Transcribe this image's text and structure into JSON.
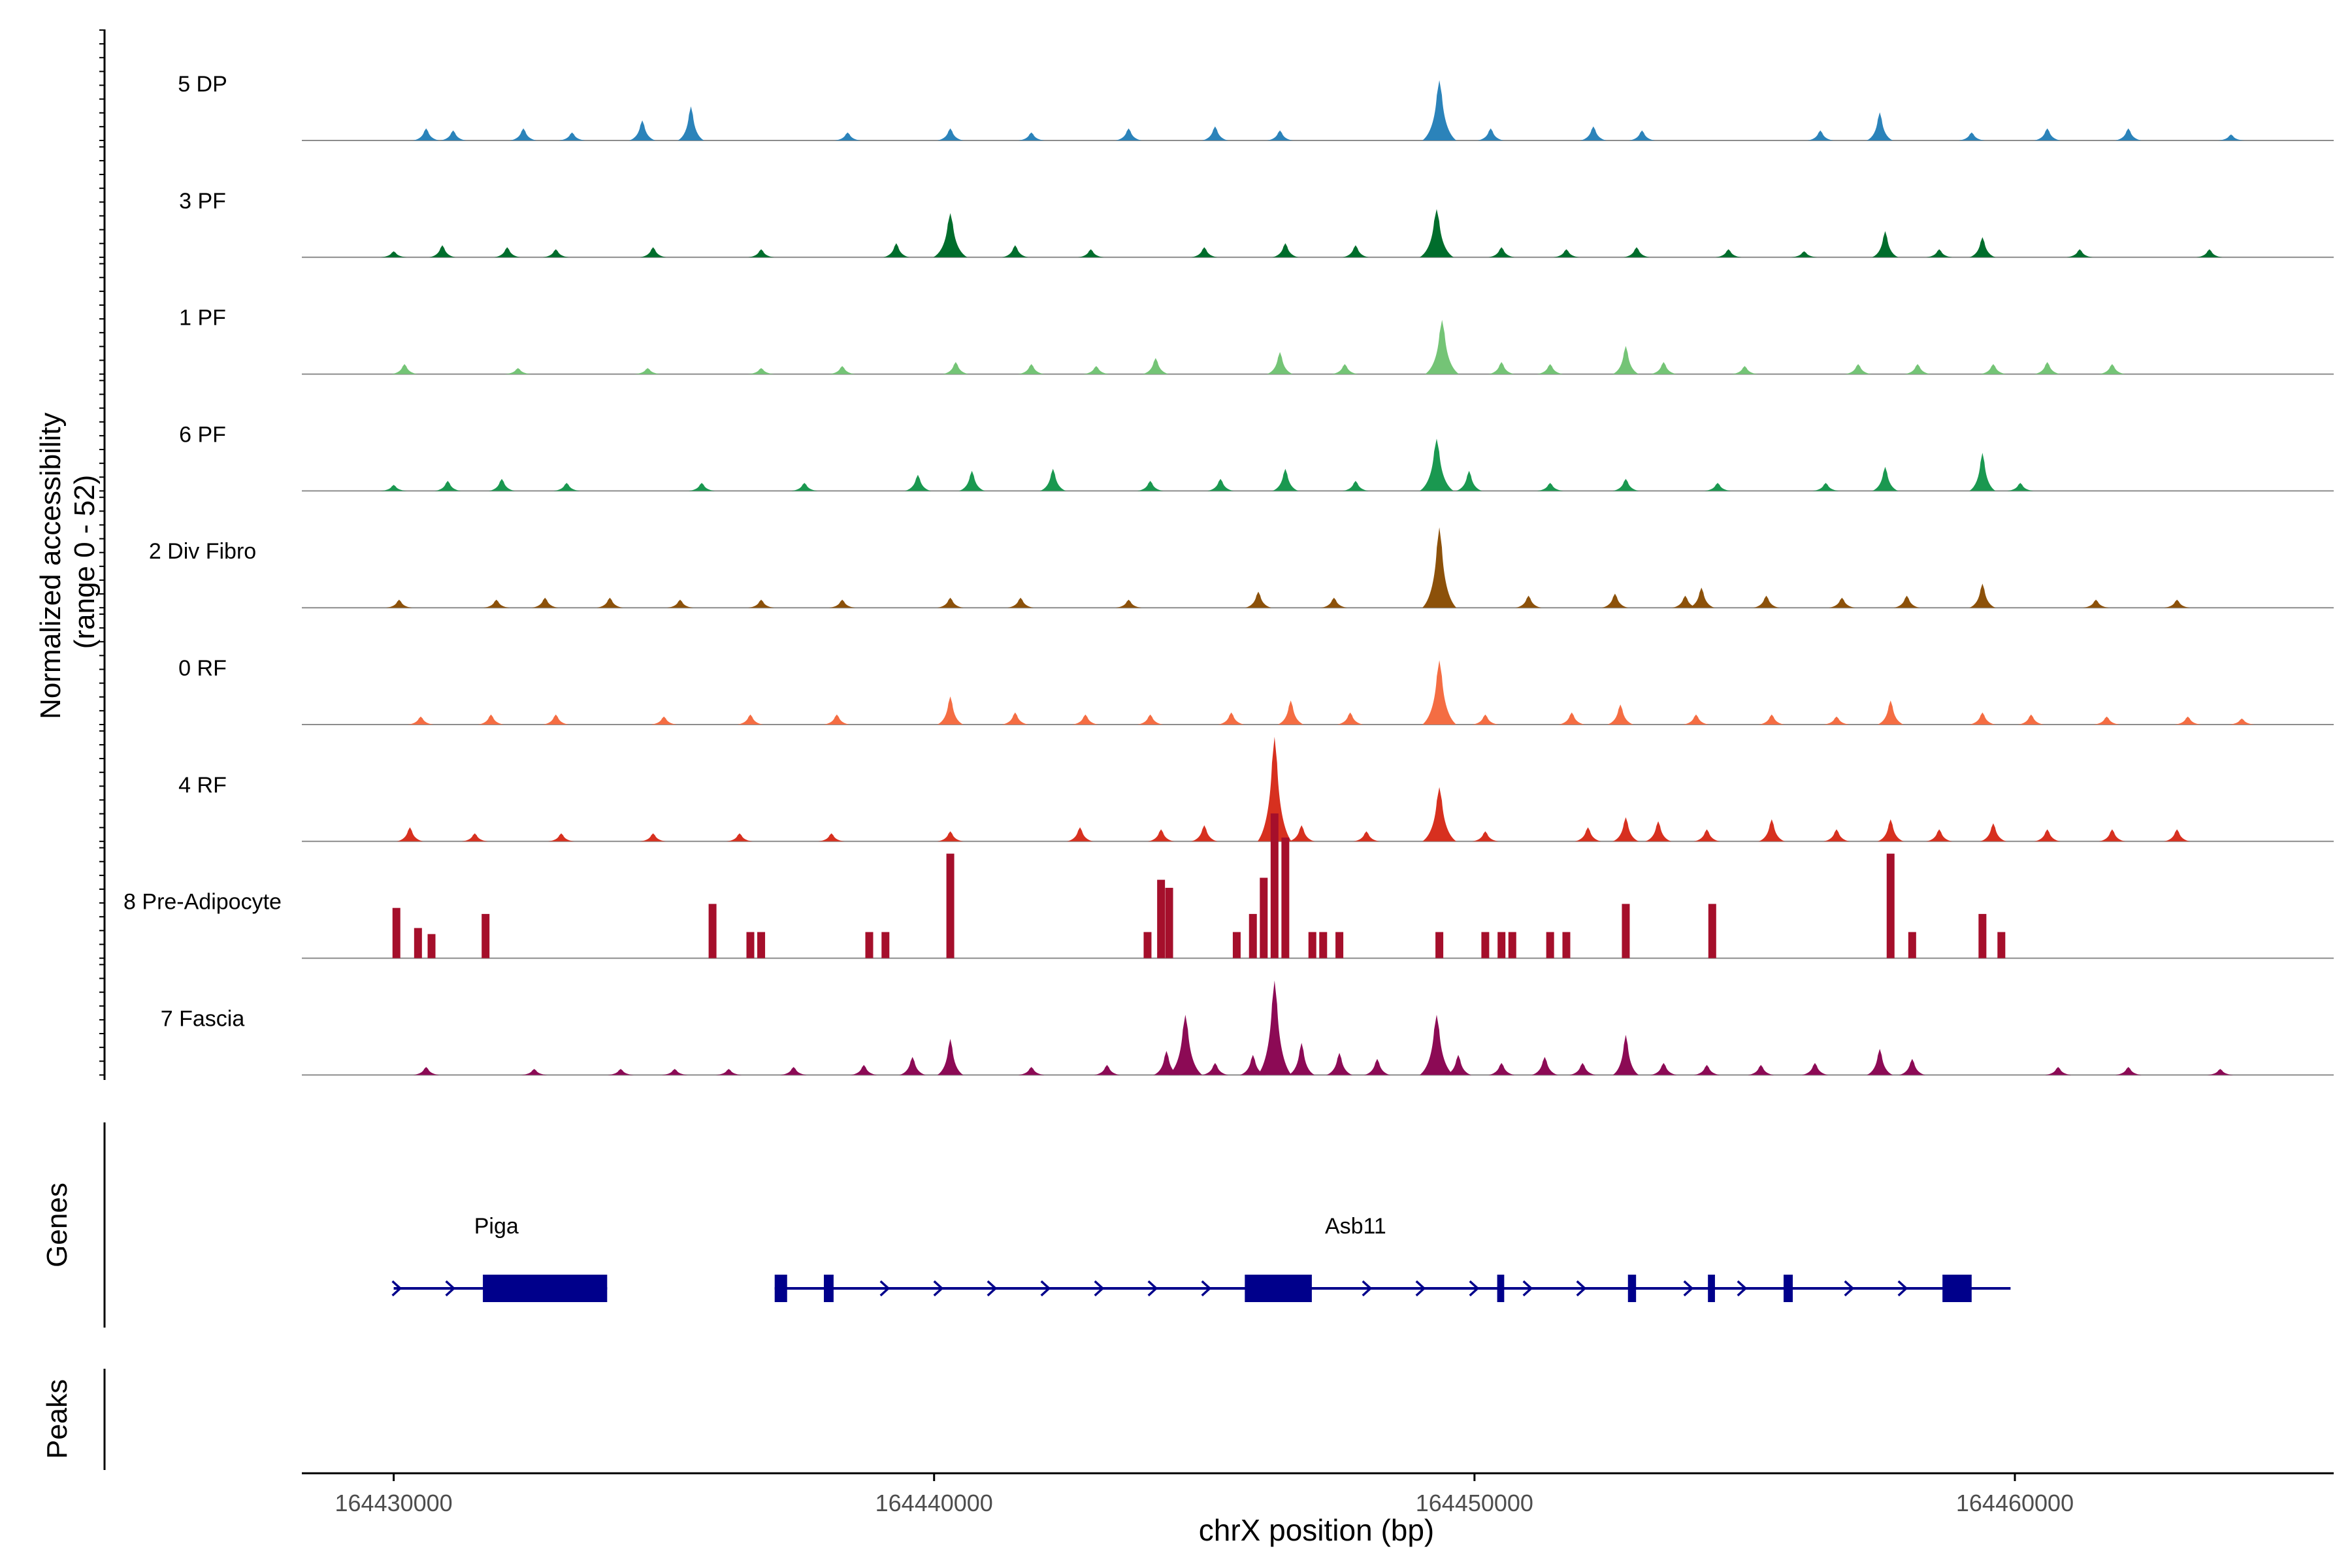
{
  "chart_data": {
    "type": "area",
    "title": "",
    "ylabel_line1": "Normalized accessibility",
    "ylabel_line2": "(range 0 - 52)",
    "ylim": [
      0,
      52
    ],
    "xlabel": "chrX position (bp)",
    "xlim": [
      164428300,
      164465900
    ],
    "xticks": [
      164430000,
      164440000,
      164450000,
      164460000
    ],
    "xtick_labels": [
      "164430000",
      "164440000",
      "164450000",
      "164460000"
    ],
    "tracks": [
      {
        "name": "5 DP",
        "color": "#2b83ba",
        "style": "smooth",
        "peaks": [
          [
            164430600,
            6
          ],
          [
            164431100,
            5
          ],
          [
            164432400,
            6
          ],
          [
            164433300,
            4
          ],
          [
            164434600,
            10
          ],
          [
            164435500,
            17
          ],
          [
            164438400,
            4
          ],
          [
            164440300,
            6
          ],
          [
            164441800,
            4
          ],
          [
            164443600,
            6
          ],
          [
            164445200,
            7
          ],
          [
            164446400,
            5
          ],
          [
            164449350,
            30
          ],
          [
            164450300,
            6
          ],
          [
            164452200,
            7
          ],
          [
            164453100,
            5
          ],
          [
            164456400,
            5
          ],
          [
            164457500,
            14
          ],
          [
            164459200,
            4
          ],
          [
            164460600,
            6
          ],
          [
            164462100,
            6
          ],
          [
            164464000,
            3
          ]
        ]
      },
      {
        "name": "3 PF",
        "color": "#006d2c",
        "style": "smooth",
        "peaks": [
          [
            164430000,
            3
          ],
          [
            164430900,
            6
          ],
          [
            164432100,
            5
          ],
          [
            164433000,
            4
          ],
          [
            164434800,
            5
          ],
          [
            164436800,
            4
          ],
          [
            164439300,
            7
          ],
          [
            164440300,
            22
          ],
          [
            164441500,
            6
          ],
          [
            164442900,
            4
          ],
          [
            164445000,
            5
          ],
          [
            164446500,
            7
          ],
          [
            164447800,
            6
          ],
          [
            164449300,
            24
          ],
          [
            164450500,
            5
          ],
          [
            164451700,
            4
          ],
          [
            164453000,
            5
          ],
          [
            164454700,
            4
          ],
          [
            164456100,
            3
          ],
          [
            164457600,
            13
          ],
          [
            164458600,
            4
          ],
          [
            164459400,
            10
          ],
          [
            164461200,
            4
          ],
          [
            164463600,
            4
          ]
        ]
      },
      {
        "name": "1 PF",
        "color": "#74c476",
        "style": "smooth",
        "peaks": [
          [
            164430200,
            5
          ],
          [
            164432300,
            3
          ],
          [
            164434700,
            3
          ],
          [
            164436800,
            3
          ],
          [
            164438300,
            4
          ],
          [
            164440400,
            6
          ],
          [
            164441800,
            5
          ],
          [
            164443000,
            4
          ],
          [
            164444100,
            8
          ],
          [
            164446400,
            11
          ],
          [
            164447600,
            5
          ],
          [
            164449400,
            27
          ],
          [
            164450500,
            6
          ],
          [
            164451400,
            5
          ],
          [
            164452800,
            14
          ],
          [
            164453500,
            6
          ],
          [
            164455000,
            4
          ],
          [
            164457100,
            5
          ],
          [
            164458200,
            5
          ],
          [
            164459600,
            5
          ],
          [
            164460600,
            6
          ],
          [
            164461800,
            5
          ]
        ]
      },
      {
        "name": "6 PF",
        "color": "#1a9850",
        "style": "smooth",
        "peaks": [
          [
            164430000,
            3
          ],
          [
            164431000,
            5
          ],
          [
            164432000,
            6
          ],
          [
            164433200,
            4
          ],
          [
            164435700,
            4
          ],
          [
            164437600,
            4
          ],
          [
            164439700,
            8
          ],
          [
            164440700,
            10
          ],
          [
            164442200,
            11
          ],
          [
            164444000,
            5
          ],
          [
            164445300,
            6
          ],
          [
            164446500,
            11
          ],
          [
            164447800,
            5
          ],
          [
            164449300,
            26
          ],
          [
            164449900,
            10
          ],
          [
            164451400,
            4
          ],
          [
            164452800,
            6
          ],
          [
            164454500,
            4
          ],
          [
            164456500,
            4
          ],
          [
            164457600,
            12
          ],
          [
            164459400,
            19
          ],
          [
            164460100,
            4
          ]
        ]
      },
      {
        "name": "2 Div Fibro",
        "color": "#8c510a",
        "style": "smooth",
        "peaks": [
          [
            164430100,
            4
          ],
          [
            164431900,
            4
          ],
          [
            164432800,
            5
          ],
          [
            164434000,
            5
          ],
          [
            164435300,
            4
          ],
          [
            164436800,
            4
          ],
          [
            164438300,
            4
          ],
          [
            164440300,
            5
          ],
          [
            164441600,
            5
          ],
          [
            164443600,
            4
          ],
          [
            164446000,
            8
          ],
          [
            164447400,
            5
          ],
          [
            164449350,
            40
          ],
          [
            164451000,
            6
          ],
          [
            164452600,
            7
          ],
          [
            164453900,
            6
          ],
          [
            164454200,
            10
          ],
          [
            164455400,
            6
          ],
          [
            164456800,
            5
          ],
          [
            164458000,
            6
          ],
          [
            164459400,
            12
          ],
          [
            164461500,
            4
          ],
          [
            164463000,
            4
          ]
        ]
      },
      {
        "name": "0 RF",
        "color": "#f46d43",
        "style": "smooth",
        "peaks": [
          [
            164430500,
            4
          ],
          [
            164431800,
            5
          ],
          [
            164433000,
            5
          ],
          [
            164435000,
            4
          ],
          [
            164436600,
            5
          ],
          [
            164438200,
            5
          ],
          [
            164440300,
            14
          ],
          [
            164441500,
            6
          ],
          [
            164442800,
            5
          ],
          [
            164444000,
            5
          ],
          [
            164445500,
            6
          ],
          [
            164446600,
            12
          ],
          [
            164447700,
            6
          ],
          [
            164449350,
            32
          ],
          [
            164450200,
            5
          ],
          [
            164451800,
            6
          ],
          [
            164452700,
            10
          ],
          [
            164454100,
            5
          ],
          [
            164455500,
            5
          ],
          [
            164456700,
            4
          ],
          [
            164457700,
            12
          ],
          [
            164459400,
            6
          ],
          [
            164460300,
            5
          ],
          [
            164461700,
            4
          ],
          [
            164463200,
            4
          ],
          [
            164464200,
            3
          ]
        ]
      },
      {
        "name": "4 RF",
        "color": "#d7301f",
        "style": "smooth",
        "peaks": [
          [
            164430300,
            7
          ],
          [
            164431500,
            4
          ],
          [
            164433100,
            4
          ],
          [
            164434800,
            4
          ],
          [
            164436400,
            4
          ],
          [
            164438100,
            4
          ],
          [
            164440300,
            5
          ],
          [
            164442700,
            7
          ],
          [
            164444200,
            6
          ],
          [
            164445000,
            8
          ],
          [
            164446300,
            52
          ],
          [
            164446800,
            8
          ],
          [
            164448000,
            5
          ],
          [
            164449350,
            27
          ],
          [
            164450200,
            5
          ],
          [
            164452100,
            7
          ],
          [
            164452800,
            12
          ],
          [
            164453400,
            10
          ],
          [
            164454300,
            6
          ],
          [
            164455500,
            11
          ],
          [
            164456700,
            6
          ],
          [
            164457700,
            11
          ],
          [
            164458600,
            6
          ],
          [
            164459600,
            9
          ],
          [
            164460600,
            6
          ],
          [
            164461800,
            6
          ],
          [
            164463000,
            6
          ]
        ]
      },
      {
        "name": "8 Pre-Adipocyte",
        "color": "#a50f2b",
        "style": "bars",
        "peaks": [
          [
            164430050,
            25
          ],
          [
            164430450,
            15
          ],
          [
            164430700,
            12
          ],
          [
            164431700,
            22
          ],
          [
            164435900,
            27
          ],
          [
            164436600,
            13
          ],
          [
            164436800,
            13
          ],
          [
            164438800,
            13
          ],
          [
            164439100,
            13
          ],
          [
            164440300,
            52
          ],
          [
            164443950,
            13
          ],
          [
            164444200,
            39
          ],
          [
            164444350,
            35
          ],
          [
            164445600,
            13
          ],
          [
            164445900,
            22
          ],
          [
            164446100,
            40
          ],
          [
            164446300,
            72
          ],
          [
            164446500,
            60
          ],
          [
            164447000,
            13
          ],
          [
            164447200,
            13
          ],
          [
            164447500,
            13
          ],
          [
            164449350,
            13
          ],
          [
            164450200,
            13
          ],
          [
            164450500,
            13
          ],
          [
            164450700,
            13
          ],
          [
            164451400,
            13
          ],
          [
            164451700,
            13
          ],
          [
            164452800,
            27
          ],
          [
            164454400,
            27
          ],
          [
            164457700,
            52
          ],
          [
            164458100,
            13
          ],
          [
            164459400,
            22
          ],
          [
            164459750,
            13
          ]
        ]
      },
      {
        "name": "7 Fascia",
        "color": "#8c0a55",
        "style": "smooth",
        "peaks": [
          [
            164430600,
            4
          ],
          [
            164432600,
            3
          ],
          [
            164434200,
            3
          ],
          [
            164435200,
            3
          ],
          [
            164436200,
            3
          ],
          [
            164437400,
            4
          ],
          [
            164438700,
            5
          ],
          [
            164439600,
            9
          ],
          [
            164440300,
            18
          ],
          [
            164441800,
            4
          ],
          [
            164443200,
            5
          ],
          [
            164444300,
            12
          ],
          [
            164444650,
            30
          ],
          [
            164445200,
            6
          ],
          [
            164445900,
            10
          ],
          [
            164446300,
            47
          ],
          [
            164446800,
            16
          ],
          [
            164447500,
            11
          ],
          [
            164448200,
            8
          ],
          [
            164449300,
            30
          ],
          [
            164449700,
            10
          ],
          [
            164450500,
            6
          ],
          [
            164451300,
            9
          ],
          [
            164452000,
            6
          ],
          [
            164452800,
            20
          ],
          [
            164453500,
            6
          ],
          [
            164454300,
            5
          ],
          [
            164455300,
            5
          ],
          [
            164456300,
            6
          ],
          [
            164457500,
            13
          ],
          [
            164458100,
            8
          ],
          [
            164460800,
            4
          ],
          [
            164462100,
            4
          ],
          [
            164463800,
            3
          ]
        ]
      }
    ],
    "genes": [
      {
        "name": "Piga",
        "strand": "+",
        "start": 164430000,
        "end": 164433950,
        "exons": [
          [
            164431650,
            164433950
          ]
        ]
      },
      {
        "name": "Asb11",
        "strand": "+",
        "start": 164437050,
        "end": 164459920,
        "exons": [
          [
            164437050,
            164437280
          ],
          [
            164437960,
            164438140
          ],
          [
            164445750,
            164446990
          ],
          [
            164450420,
            164450550
          ],
          [
            164452840,
            164452990
          ],
          [
            164454320,
            164454450
          ],
          [
            164455720,
            164455890
          ],
          [
            164458660,
            164459200
          ]
        ]
      }
    ],
    "genes_panel_title": "Genes",
    "peaks_panel_title": "Peaks"
  }
}
